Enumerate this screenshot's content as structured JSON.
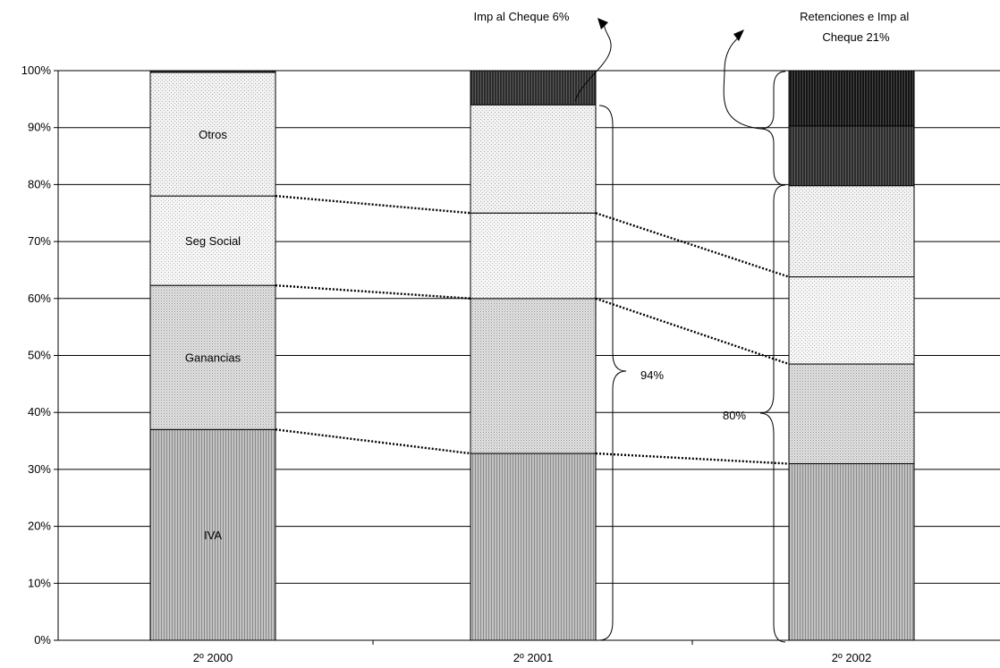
{
  "chart_data": {
    "type": "bar",
    "stacked": true,
    "normalized": true,
    "title": "",
    "xlabel": "",
    "ylabel": "",
    "ylim": [
      0,
      100
    ],
    "y_ticks": [
      "0%",
      "10%",
      "20%",
      "30%",
      "40%",
      "50%",
      "60%",
      "70%",
      "80%",
      "90%",
      "100%"
    ],
    "categories": [
      "2º 2000",
      "2º 2001",
      "2º 2002"
    ],
    "series": [
      {
        "name": "IVA",
        "values": [
          37,
          32.8,
          31
        ]
      },
      {
        "name": "Ganancias",
        "values": [
          25.3,
          27.2,
          17.5
        ]
      },
      {
        "name": "Seg Social",
        "values": [
          15.7,
          15,
          15.3
        ]
      },
      {
        "name": "Otros",
        "values": [
          21.7,
          19,
          16
        ]
      },
      {
        "name": "",
        "values": [
          0.3,
          6,
          10.5
        ]
      },
      {
        "name": "",
        "values": [
          0,
          0,
          9.7
        ]
      }
    ],
    "annotations": {
      "imp_cheque_2001": "Imp al Cheque 6%",
      "retenciones_2002": "Retenciones  e Imp al Cheque 21%",
      "brace_2001": "94%",
      "brace_2002": "80%"
    },
    "grid": true
  }
}
